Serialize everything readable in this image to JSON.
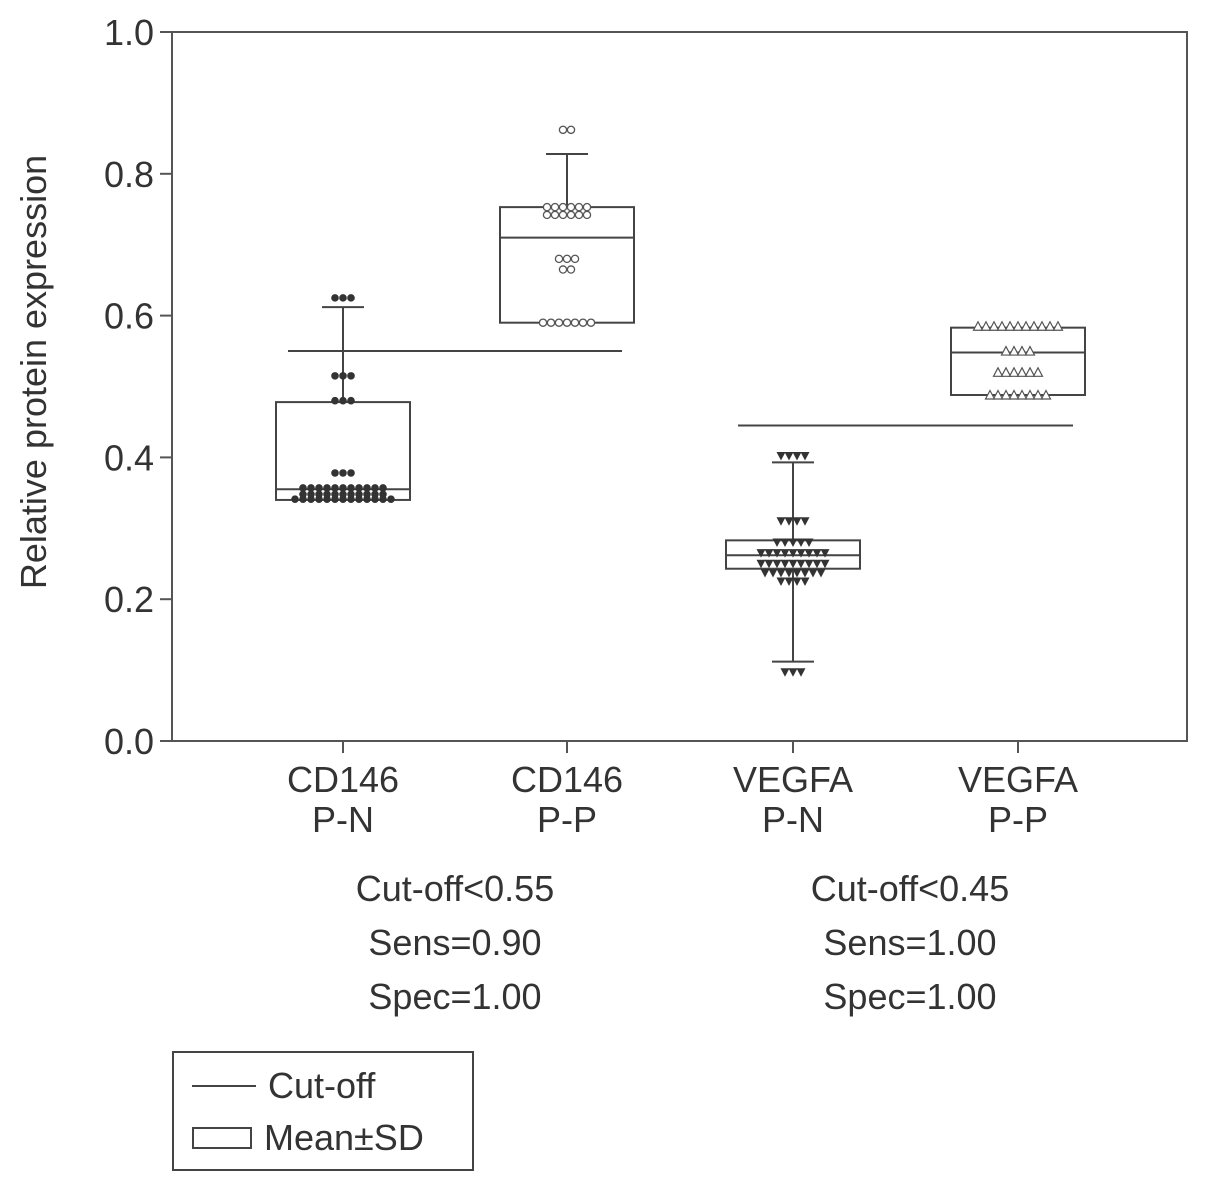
{
  "chart_data": {
    "type": "box-dot",
    "ylabel": "Relative protein expression",
    "ylim": [
      0,
      1.0
    ],
    "yticks": [
      "0.0",
      "0.2",
      "0.4",
      "0.6",
      "0.8",
      "1.0"
    ],
    "groups": [
      {
        "label_line1": "CD146",
        "label_line2": "P-N",
        "marker": "filled-circle",
        "box": [
          0.34,
          0.478
        ],
        "center": 0.355,
        "whisker": [
          0.34,
          0.612
        ],
        "points": [
          {
            "y": 0.625,
            "n": 3
          },
          {
            "y": 0.515,
            "n": 3
          },
          {
            "y": 0.48,
            "n": 3
          },
          {
            "y": 0.378,
            "n": 3
          },
          {
            "y": 0.357,
            "n": 11
          },
          {
            "y": 0.348,
            "n": 11
          },
          {
            "y": 0.341,
            "n": 13
          }
        ]
      },
      {
        "label_line1": "CD146",
        "label_line2": "P-P",
        "marker": "open-circle",
        "box": [
          0.59,
          0.753
        ],
        "center": 0.71,
        "whisker": [
          0.59,
          0.828
        ],
        "points": [
          {
            "y": 0.862,
            "n": 2
          },
          {
            "y": 0.753,
            "n": 6
          },
          {
            "y": 0.742,
            "n": 6
          },
          {
            "y": 0.68,
            "n": 3
          },
          {
            "y": 0.665,
            "n": 2
          },
          {
            "y": 0.59,
            "n": 7
          }
        ]
      },
      {
        "label_line1": "VEGFA",
        "label_line2": "P-N",
        "marker": "filled-triangle-down",
        "box": [
          0.243,
          0.283
        ],
        "center": 0.262,
        "whisker": [
          0.112,
          0.393
        ],
        "points": [
          {
            "y": 0.402,
            "n": 4
          },
          {
            "y": 0.31,
            "n": 4
          },
          {
            "y": 0.28,
            "n": 5
          },
          {
            "y": 0.265,
            "n": 9
          },
          {
            "y": 0.25,
            "n": 9
          },
          {
            "y": 0.237,
            "n": 8
          },
          {
            "y": 0.225,
            "n": 4
          },
          {
            "y": 0.097,
            "n": 3
          }
        ]
      },
      {
        "label_line1": "VEGFA",
        "label_line2": "P-P",
        "marker": "open-triangle-up",
        "box": [
          0.488,
          0.583
        ],
        "center": 0.548,
        "whisker": [
          0.488,
          0.583
        ],
        "points": [
          {
            "y": 0.585,
            "n": 11
          },
          {
            "y": 0.55,
            "n": 4
          },
          {
            "y": 0.52,
            "n": 6
          },
          {
            "y": 0.488,
            "n": 8
          }
        ]
      }
    ],
    "cutoffs": [
      {
        "value": 0.55,
        "from_group": 0,
        "to_group": 1
      },
      {
        "value": 0.445,
        "from_group": 2,
        "to_group": 3
      }
    ],
    "legend": [
      {
        "symbol": "line",
        "label": "Cut-off"
      },
      {
        "symbol": "box",
        "label": "Mean±SD"
      }
    ]
  },
  "stats": [
    {
      "cutoff": "Cut-off<0.55",
      "sens": "Sens=0.90",
      "spec": "Spec=1.00"
    },
    {
      "cutoff": "Cut-off<0.45",
      "sens": "Sens=1.00",
      "spec": "Spec=1.00"
    }
  ],
  "colors": {
    "ink": "#333333",
    "frame": "#444444"
  }
}
